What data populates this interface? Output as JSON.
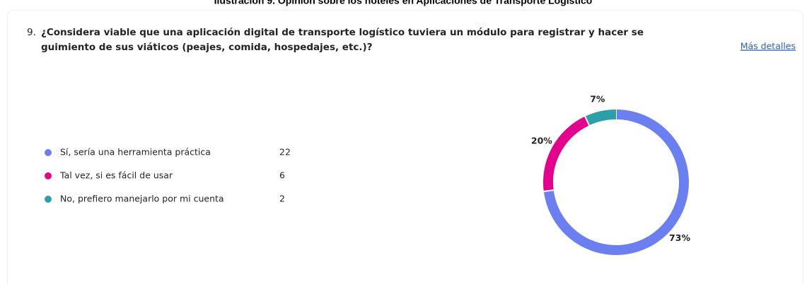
{
  "caption": "Ilustración 9. Opinión sobre los hoteles en Aplicaciones de Transporte Logístico",
  "question_number": "9.",
  "question_lines": [
    "¿Considera viable que una aplicación digital de transporte logístico tuviera un módulo para registrar y hacer se",
    "guimiento de sus viáticos (peajes, comida, hospedajes, etc.)?"
  ],
  "details_link": "Más detalles",
  "chart_data": {
    "type": "donut",
    "categories": [
      "Sí, sería una herramienta práctica",
      "Tal vez, si es fácil de usar",
      "No, prefiero manejarlo por mi cuenta"
    ],
    "counts": [
      22,
      6,
      2
    ],
    "values": [
      73,
      20,
      7
    ],
    "value_labels": [
      "73%",
      "20%",
      "7%"
    ],
    "colors": [
      "#6b7ff0",
      "#e3008c",
      "#2c9fa8"
    ]
  }
}
